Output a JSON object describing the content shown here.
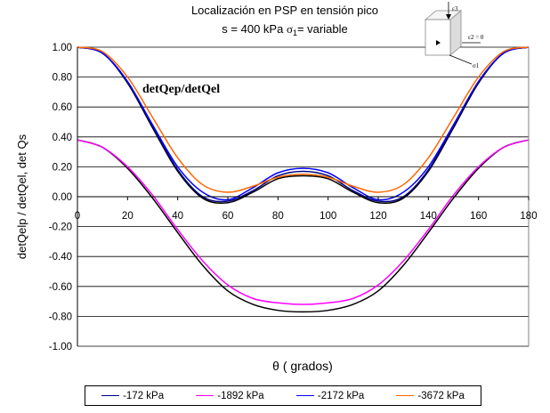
{
  "chart_data": {
    "type": "line",
    "title_line1": "Localización en PSP en tensión pico",
    "title_line2_prefix": "s = 400 kPa ",
    "title_line2_sigma": "σ",
    "title_line2_sub": "1",
    "title_line2_suffix": "= variable",
    "annotation": "detQep/detQel",
    "xlabel": "θ ( grados)",
    "ylabel": "detQelp / detQel, det Qs",
    "xlim": [
      0,
      180
    ],
    "ylim": [
      -1.0,
      1.0
    ],
    "x_ticks": [
      "0",
      "20",
      "40",
      "60",
      "80",
      "100",
      "120",
      "140",
      "160",
      "180"
    ],
    "y_ticks": [
      "1.00",
      "0.80",
      "0.60",
      "0.40",
      "0.20",
      "0.00",
      "-0.20",
      "-0.40",
      "-0.60",
      "-0.80",
      "-1.00"
    ],
    "grid": "horizontal",
    "legend_position": "bottom",
    "inset_labels": {
      "e3": "ε3",
      "e2": "ε2 = 0",
      "s1": "σ1"
    },
    "x": [
      0,
      10,
      20,
      30,
      40,
      50,
      60,
      70,
      80,
      90,
      100,
      110,
      120,
      130,
      140,
      150,
      160,
      170,
      180
    ],
    "series": [
      {
        "name": "-172 kPa",
        "color": "#000080",
        "group": "detQep/detQel",
        "values": [
          1.0,
          0.96,
          0.77,
          0.47,
          0.18,
          0.0,
          -0.03,
          0.04,
          0.14,
          0.17,
          0.14,
          0.04,
          -0.03,
          0.0,
          0.18,
          0.47,
          0.77,
          0.96,
          1.0
        ]
      },
      {
        "name": "-1892 kPa",
        "color": "#ff00ff",
        "group": "det Qs",
        "values": [
          0.38,
          0.33,
          0.2,
          0.01,
          -0.22,
          -0.43,
          -0.59,
          -0.68,
          -0.71,
          -0.72,
          -0.71,
          -0.68,
          -0.59,
          -0.43,
          -0.22,
          0.01,
          0.2,
          0.33,
          0.38
        ]
      },
      {
        "name": "-2172 kPa",
        "color": "#0000ff",
        "group": "detQep/detQel",
        "values": [
          1.0,
          0.96,
          0.77,
          0.48,
          0.2,
          0.03,
          -0.02,
          0.06,
          0.16,
          0.19,
          0.16,
          0.06,
          -0.02,
          0.03,
          0.2,
          0.48,
          0.77,
          0.96,
          1.0
        ]
      },
      {
        "name": "-3672 kPa",
        "color": "#ff6600",
        "group": "detQep/detQel",
        "values": [
          1.0,
          0.97,
          0.8,
          0.53,
          0.26,
          0.08,
          0.03,
          0.07,
          0.13,
          0.15,
          0.13,
          0.07,
          0.03,
          0.08,
          0.26,
          0.53,
          0.8,
          0.97,
          1.0
        ]
      }
    ],
    "unlabeled_series": [
      {
        "color": "#000000",
        "values": [
          0.38,
          0.33,
          0.19,
          -0.01,
          -0.24,
          -0.46,
          -0.63,
          -0.72,
          -0.76,
          -0.77,
          -0.76,
          -0.72,
          -0.63,
          -0.46,
          -0.24,
          -0.01,
          0.19,
          0.33,
          0.38
        ]
      },
      {
        "color": "#000000",
        "values": [
          1.0,
          0.96,
          0.76,
          0.46,
          0.17,
          -0.01,
          -0.04,
          0.03,
          0.12,
          0.14,
          0.12,
          0.03,
          -0.04,
          -0.01,
          0.17,
          0.46,
          0.76,
          0.96,
          1.0
        ]
      }
    ]
  }
}
